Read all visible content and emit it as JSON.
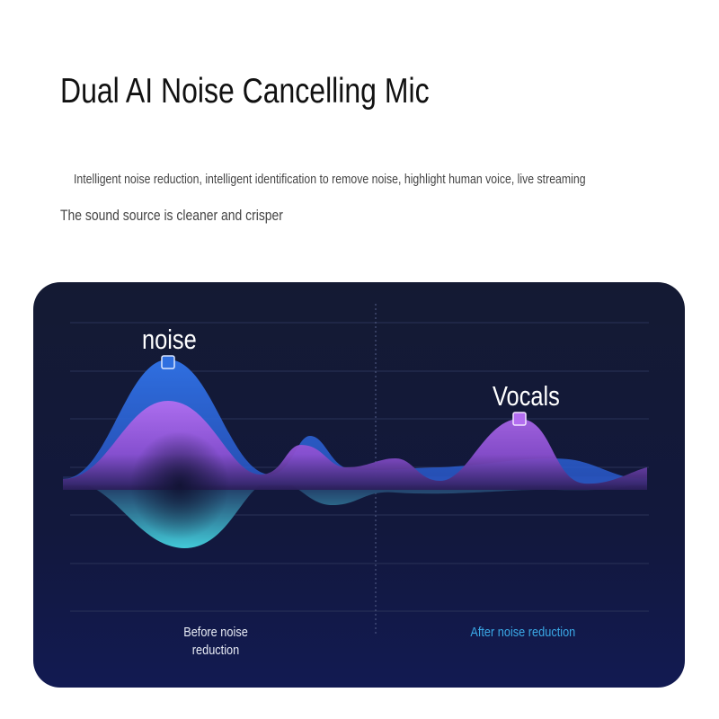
{
  "title": "Dual AI Noise Cancelling Mic",
  "subtitle_line1": "Intelligent noise reduction, intelligent identification to remove noise, highlight human voice, live streaming",
  "subtitle_line2": "The sound source is cleaner and crisper",
  "graphic": {
    "peak_labels": {
      "noise": "noise",
      "vocals": "Vocals"
    },
    "sections": {
      "before": "Before noise reduction",
      "after": "After noise reduction"
    },
    "colors": {
      "background": "#131a3d",
      "noise_wave": "#2f6fe0",
      "vocal_wave": "#b36ef0",
      "low_wave": "#3fd0e0",
      "after_label": "#3aa8e6"
    }
  }
}
